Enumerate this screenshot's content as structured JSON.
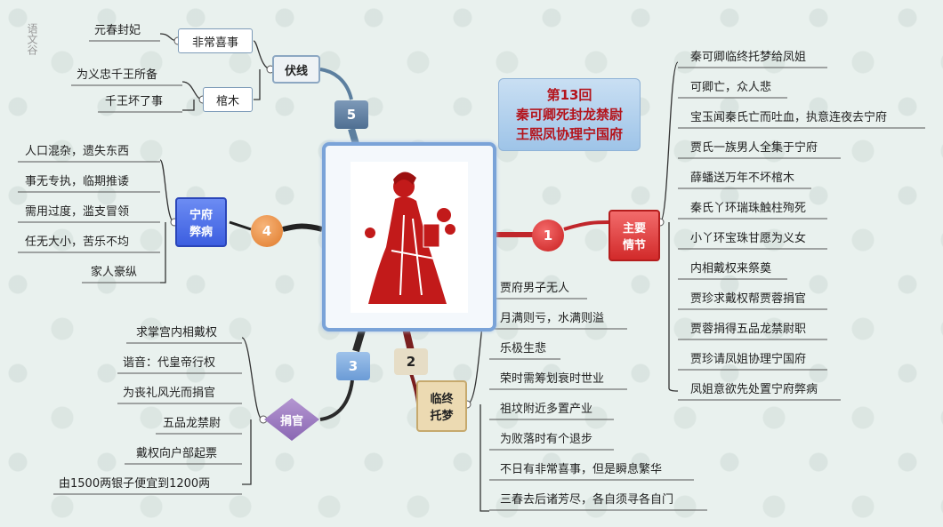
{
  "title": {
    "line1": "第13回",
    "line2": "秦可卿死封龙禁尉",
    "line3": "王熙凤协理宁国府"
  },
  "side_mark": "语文谷",
  "nodes": {
    "n1": {
      "number": "1",
      "label": "主要\n情节",
      "color": "#e23b3b"
    },
    "n2": {
      "number": "2",
      "label": "临终\n托梦",
      "color": "#e7dcc4"
    },
    "n3": {
      "number": "3",
      "label": "捐官",
      "color": "#8d6bb0"
    },
    "n4": {
      "number": "4",
      "label": "宁府\n弊病",
      "color": "#4f6fe6"
    },
    "n5": {
      "number": "5",
      "label": "伏线",
      "color": "#5c7f9f"
    }
  },
  "branch1": [
    "秦可卿临终托梦给凤姐",
    "可卿亡，众人悲",
    "宝玉闻秦氏亡而吐血，执意连夜去宁府",
    "贾氏一族男人全集于宁府",
    "薛蟠送万年不坏棺木",
    "秦氏丫环瑞珠触柱殉死",
    "小丫环宝珠甘愿为义女",
    "内相戴权来祭奠",
    "贾珍求戴权帮贾蓉捐官",
    "贾蓉捐得五品龙禁尉职",
    "贾珍请凤姐协理宁国府",
    "凤姐意欲先处置宁府弊病"
  ],
  "branch2": [
    "贾府男子无人",
    "月满则亏，水满则溢",
    "乐极生悲",
    "荣时需筹划衰时世业",
    "祖坟附近多置产业",
    "为败落时有个退步",
    "不日有非常喜事，但是瞬息繁华",
    "三春去后诸芳尽，各自须寻各自门"
  ],
  "branch3": [
    "求掌宫内相戴权",
    "谐音：代皇帝行权",
    "为丧礼风光而捐官",
    "五品龙禁尉",
    "戴权向户部起票",
    "由1500两银子便宜到1200两"
  ],
  "branch4": [
    "人口混杂，遗失东西",
    "事无专执，临期推诿",
    "需用过度，滥支冒领",
    "任无大小，苦乐不均",
    "家人豪纵"
  ],
  "branch5": {
    "sub1": {
      "label": "非常喜事",
      "leaves": [
        "元春封妃"
      ]
    },
    "sub2": {
      "label": "棺木",
      "leaves": [
        "为义忠千王所备",
        "千王坏了事"
      ]
    }
  }
}
